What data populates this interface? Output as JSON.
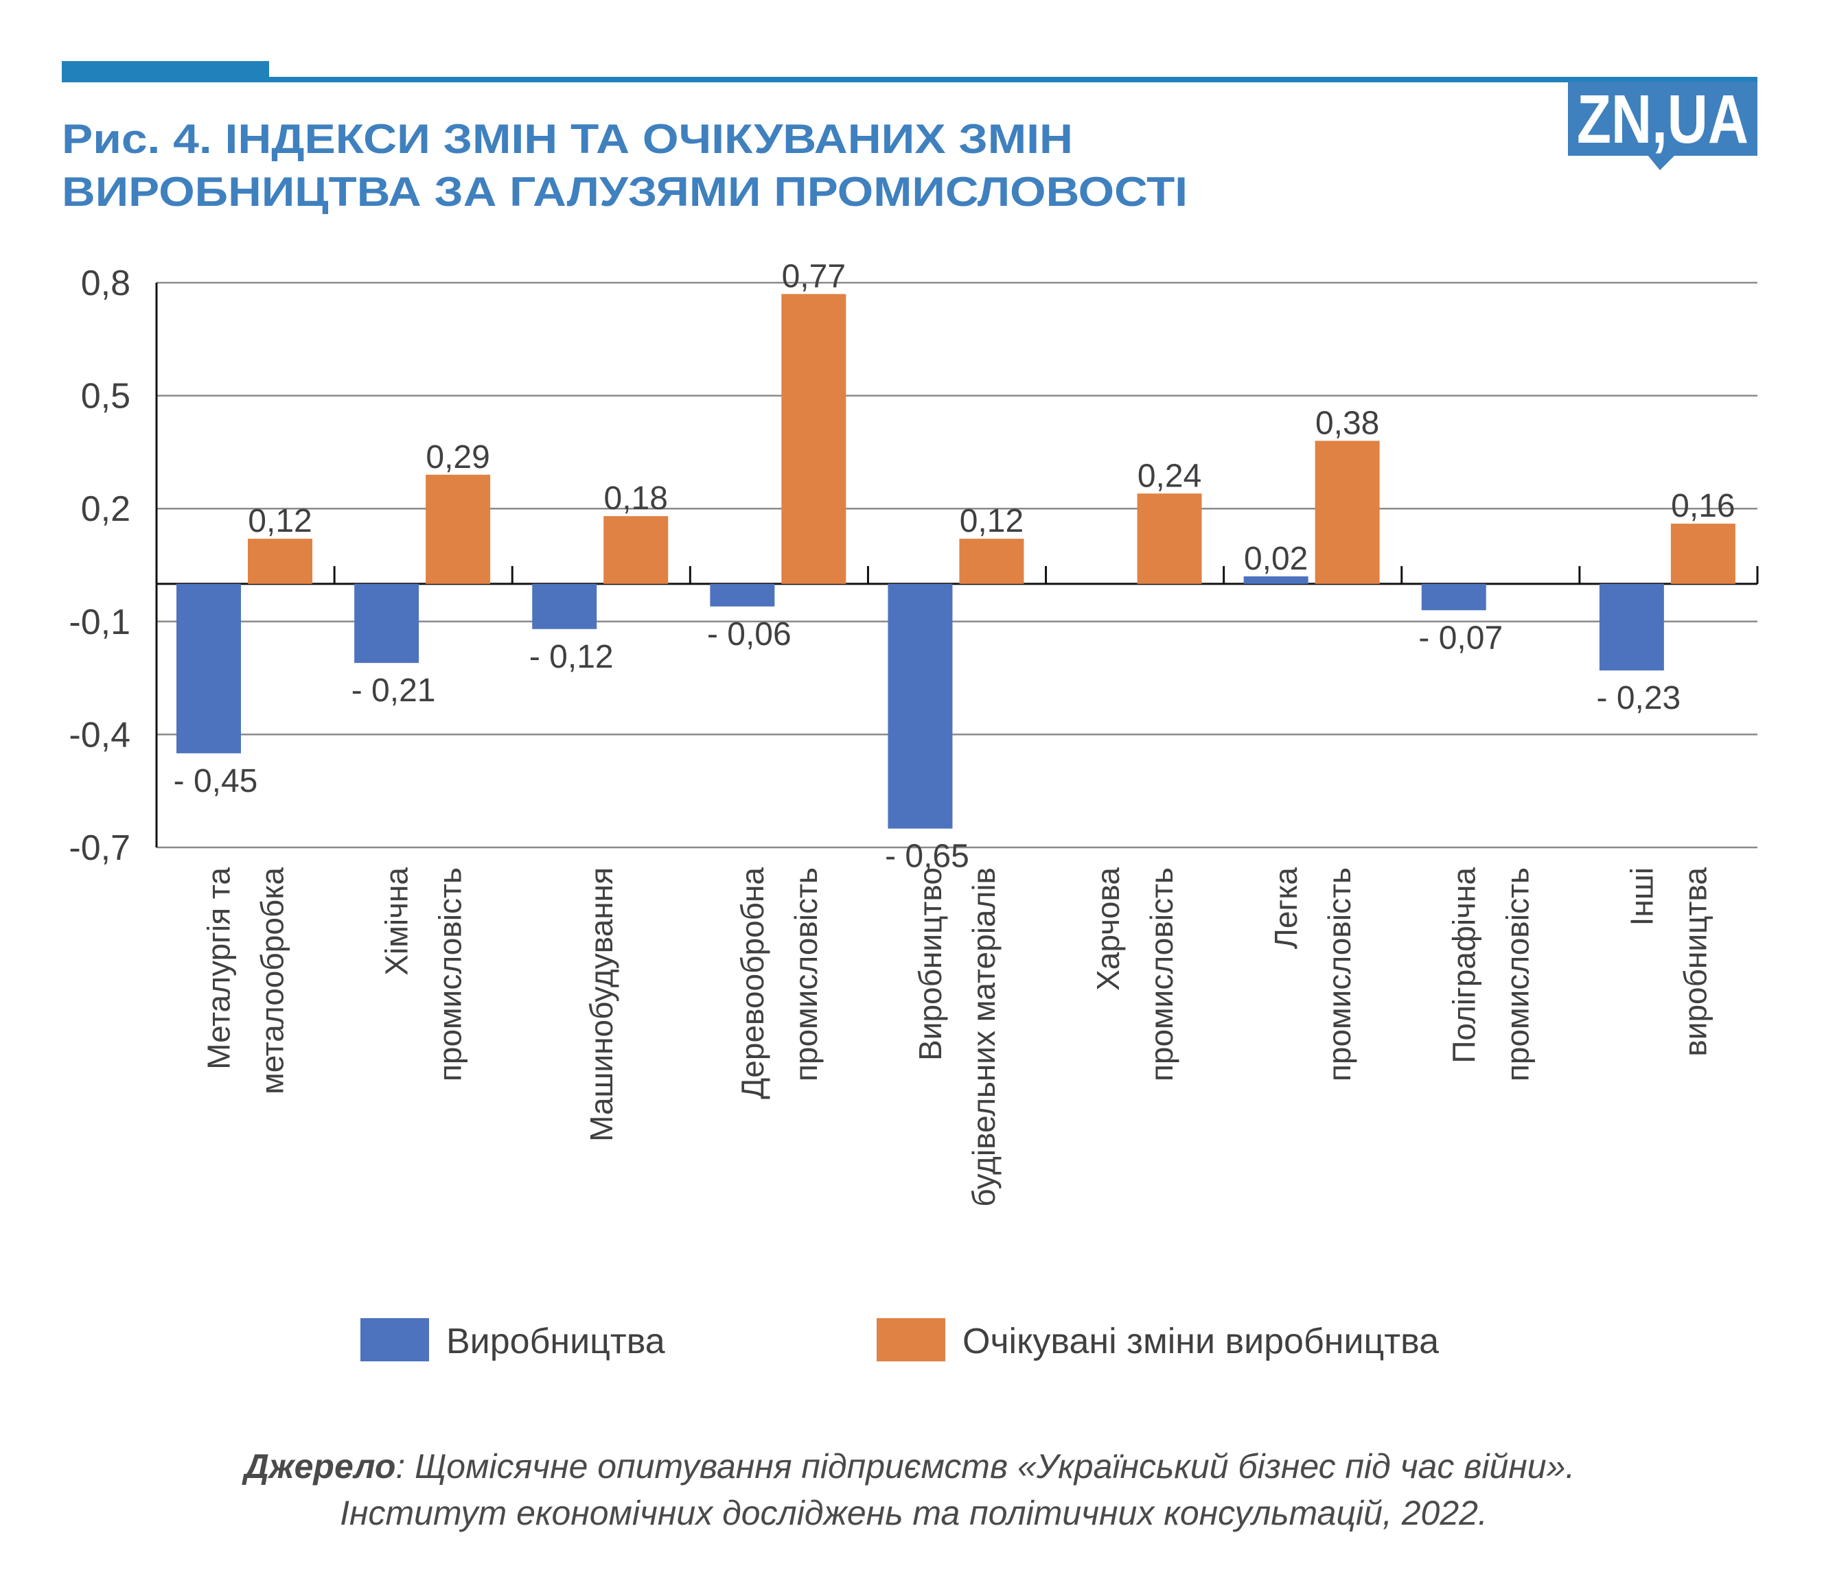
{
  "header": {
    "title_line1": "Рис. 4. ІНДЕКСИ ЗМІН ТА ОЧІКУВАНИХ ЗМІН",
    "title_line2": "ВИРОБНИЦТВА ЗА ГАЛУЗЯМИ ПРОМИСЛОВОСТІ",
    "logo": "ZN,UA",
    "accent_color": "#3f80bf"
  },
  "chart_data": {
    "type": "bar",
    "title": "Рис. 4. ІНДЕКСИ ЗМІН ТА ОЧІКУВАНИХ ЗМІН ВИРОБНИЦТВА ЗА ГАЛУЗЯМИ ПРОМИСЛОВОСТІ",
    "categories": [
      [
        "Металургія та",
        "металообробка"
      ],
      [
        "Хімічна",
        "промисловість"
      ],
      [
        "Машинобудування"
      ],
      [
        "Деревообробна",
        "промисловість"
      ],
      [
        "Виробництво",
        "будівельних матеріалів"
      ],
      [
        "Харчова",
        "промисловість"
      ],
      [
        "Легка",
        "промисловість"
      ],
      [
        "Поліграфічна",
        "промисловість"
      ],
      [
        "Інші",
        "виробництва"
      ]
    ],
    "series": [
      {
        "name": "Виробництва",
        "color": "#4e73be",
        "values": [
          -0.45,
          -0.21,
          -0.12,
          -0.06,
          -0.65,
          null,
          0.02,
          -0.07,
          -0.23
        ],
        "labels": [
          "- 0,45",
          "- 0,21",
          "- 0,12",
          "- 0,06",
          "- 0,65",
          "",
          "0,02",
          "- 0,07",
          "- 0,23"
        ]
      },
      {
        "name": "Очікувані зміни виробництва",
        "color": "#df8244",
        "values": [
          0.12,
          0.29,
          0.18,
          0.77,
          0.12,
          0.24,
          0.38,
          null,
          0.16
        ],
        "labels": [
          "0,12",
          "0,29",
          "0,18",
          "0,77",
          "0,12",
          "0,24",
          "0,38",
          "",
          "0,16"
        ]
      }
    ],
    "yticks": [
      0.8,
      0.5,
      0.2,
      -0.1,
      -0.4,
      -0.7
    ],
    "ytick_labels": [
      "0,8",
      "0,5",
      "0,2",
      "-0,1",
      "-0,4",
      "-0,7"
    ],
    "ylim": [
      -0.7,
      0.8
    ],
    "grid": true,
    "legend_position": "bottom",
    "xlabel": "",
    "ylabel": ""
  },
  "source": {
    "label": "Джерело",
    "line1": ": Щомісячне опитування підприємств «Український бізнес під час війни».",
    "line2": "Інститут економічних досліджень та політичних консультацій, 2022."
  }
}
